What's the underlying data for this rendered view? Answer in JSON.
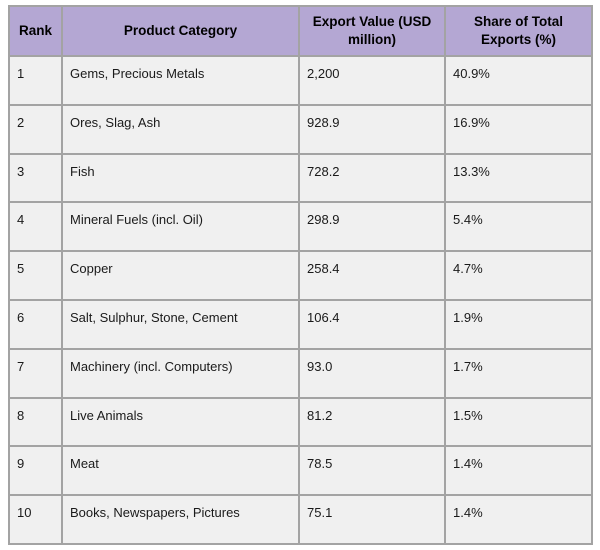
{
  "table": {
    "headers": [
      "Rank",
      "Product Category",
      "Export Value (USD million)",
      "Share of Total Exports (%)"
    ],
    "rows": [
      {
        "rank": "1",
        "category": "Gems, Precious Metals",
        "value": "2,200",
        "share": "40.9%"
      },
      {
        "rank": "2",
        "category": "Ores, Slag, Ash",
        "value": "928.9",
        "share": "16.9%"
      },
      {
        "rank": "3",
        "category": "Fish",
        "value": "728.2",
        "share": "13.3%"
      },
      {
        "rank": "4",
        "category": "Mineral Fuels (incl. Oil)",
        "value": "298.9",
        "share": "5.4%"
      },
      {
        "rank": "5",
        "category": "Copper",
        "value": "258.4",
        "share": "4.7%"
      },
      {
        "rank": "6",
        "category": "Salt, Sulphur, Stone, Cement",
        "value": "106.4",
        "share": "1.9%"
      },
      {
        "rank": "7",
        "category": "Machinery (incl. Computers)",
        "value": "93.0",
        "share": "1.7%"
      },
      {
        "rank": "8",
        "category": "Live Animals",
        "value": "81.2",
        "share": "1.5%"
      },
      {
        "rank": "9",
        "category": "Meat",
        "value": "78.5",
        "share": "1.4%"
      },
      {
        "rank": "10",
        "category": "Books, Newspapers, Pictures",
        "value": "75.1",
        "share": "1.4%"
      }
    ]
  },
  "colors": {
    "header_bg": "#b4a7d3",
    "cell_bg": "#f0f0f0",
    "border": "#a3a3a3",
    "outer_border": "#8f8f8f",
    "text": "#1a1a1a"
  },
  "chart_data": {
    "type": "table",
    "title": "",
    "columns": [
      "Rank",
      "Product Category",
      "Export Value (USD million)",
      "Share of Total Exports (%)"
    ],
    "categories": [
      "Gems, Precious Metals",
      "Ores, Slag, Ash",
      "Fish",
      "Mineral Fuels (incl. Oil)",
      "Copper",
      "Salt, Sulphur, Stone, Cement",
      "Machinery (incl. Computers)",
      "Live Animals",
      "Meat",
      "Books, Newspapers, Pictures"
    ],
    "series": [
      {
        "name": "Export Value (USD million)",
        "values": [
          2200,
          928.9,
          728.2,
          298.9,
          258.4,
          106.4,
          93.0,
          81.2,
          78.5,
          75.1
        ]
      },
      {
        "name": "Share of Total Exports (%)",
        "values": [
          40.9,
          16.9,
          13.3,
          5.4,
          4.7,
          1.9,
          1.7,
          1.5,
          1.4,
          1.4
        ]
      }
    ],
    "ranks": [
      1,
      2,
      3,
      4,
      5,
      6,
      7,
      8,
      9,
      10
    ]
  }
}
